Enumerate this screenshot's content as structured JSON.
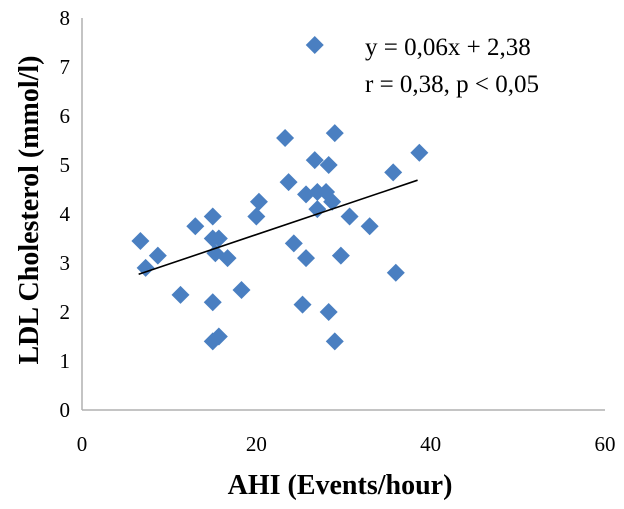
{
  "chart_data": {
    "type": "scatter",
    "title": "",
    "xlabel": "AHI (Events/hour)",
    "ylabel": "LDL Cholesterol (mmol/l)",
    "xlim": [
      0,
      60
    ],
    "ylim": [
      0,
      8
    ],
    "xticks": [
      0,
      20,
      40,
      60
    ],
    "yticks": [
      0,
      1,
      2,
      3,
      4,
      5,
      6,
      7,
      8
    ],
    "grid": false,
    "legend": "none",
    "marker": "diamond",
    "marker_color": "#4a7fc1",
    "trendline": {
      "slope": 0.06,
      "intercept": 2.38,
      "x_range": [
        6.5,
        38.5
      ],
      "color": "#000000"
    },
    "annotations": [
      "y = 0,06x + 2,38",
      "r = 0,38, p < 0,05"
    ],
    "points": [
      {
        "x": 6.7,
        "y": 3.45
      },
      {
        "x": 7.3,
        "y": 2.9
      },
      {
        "x": 8.7,
        "y": 3.15
      },
      {
        "x": 11.3,
        "y": 2.35
      },
      {
        "x": 13.0,
        "y": 3.75
      },
      {
        "x": 15.0,
        "y": 3.95
      },
      {
        "x": 15.0,
        "y": 3.5
      },
      {
        "x": 15.3,
        "y": 3.2
      },
      {
        "x": 15.7,
        "y": 3.5
      },
      {
        "x": 16.7,
        "y": 3.1
      },
      {
        "x": 15.0,
        "y": 2.2
      },
      {
        "x": 15.7,
        "y": 1.5
      },
      {
        "x": 15.0,
        "y": 1.4
      },
      {
        "x": 18.3,
        "y": 2.45
      },
      {
        "x": 20.0,
        "y": 3.95
      },
      {
        "x": 20.3,
        "y": 4.25
      },
      {
        "x": 23.3,
        "y": 5.55
      },
      {
        "x": 23.7,
        "y": 4.65
      },
      {
        "x": 24.3,
        "y": 3.4
      },
      {
        "x": 25.3,
        "y": 2.15
      },
      {
        "x": 25.7,
        "y": 3.1
      },
      {
        "x": 25.7,
        "y": 4.4
      },
      {
        "x": 26.7,
        "y": 7.45
      },
      {
        "x": 26.7,
        "y": 5.1
      },
      {
        "x": 27.0,
        "y": 4.45
      },
      {
        "x": 27.0,
        "y": 4.1
      },
      {
        "x": 28.0,
        "y": 4.45
      },
      {
        "x": 28.3,
        "y": 5.0
      },
      {
        "x": 28.7,
        "y": 4.25
      },
      {
        "x": 29.0,
        "y": 5.65
      },
      {
        "x": 28.3,
        "y": 2.0
      },
      {
        "x": 29.0,
        "y": 1.4
      },
      {
        "x": 29.7,
        "y": 3.15
      },
      {
        "x": 30.7,
        "y": 3.95
      },
      {
        "x": 33.0,
        "y": 3.75
      },
      {
        "x": 35.7,
        "y": 4.85
      },
      {
        "x": 36.0,
        "y": 2.8
      },
      {
        "x": 38.7,
        "y": 5.25
      }
    ]
  }
}
